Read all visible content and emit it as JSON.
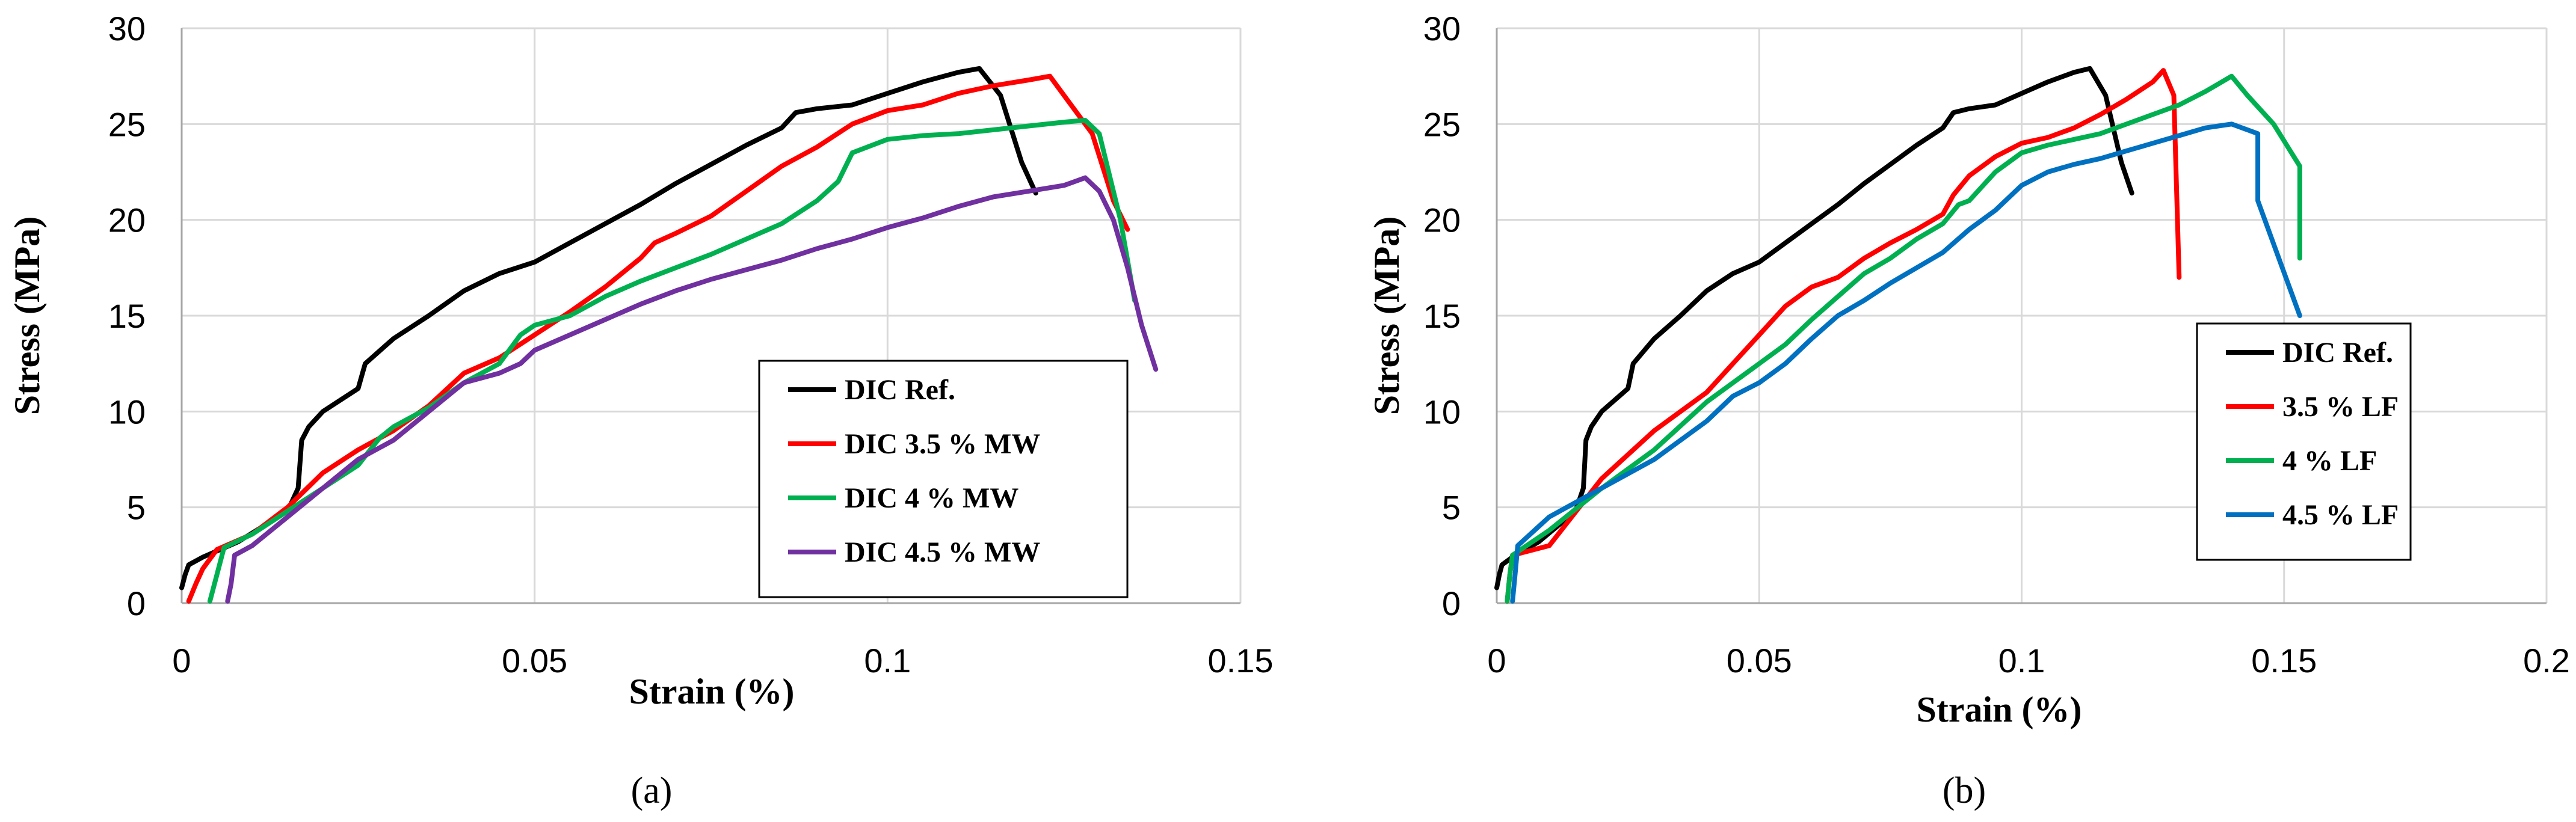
{
  "colors": {
    "black": "#000000",
    "red": "#ff0000",
    "green": "#00b050",
    "purple": "#7030a0",
    "blue": "#0070c0"
  },
  "chart_data": [
    {
      "type": "line",
      "caption": "(a)",
      "xlabel": "Strain (%)",
      "ylabel": "Stress (MPa)",
      "xlim": [
        0,
        0.15
      ],
      "ylim": [
        0,
        30
      ],
      "xticks": [
        0,
        0.05,
        0.1,
        0.15
      ],
      "xtick_labels": [
        "0",
        "0.05",
        "0.1",
        "0.15"
      ],
      "yticks": [
        0,
        5,
        10,
        15,
        20,
        25,
        30
      ],
      "ytick_labels": [
        "0",
        "5",
        "10",
        "15",
        "20",
        "25",
        "30"
      ],
      "grid": true,
      "legend_position": "bottom-right",
      "series": [
        {
          "name": "DIC Ref.",
          "color": "#000000",
          "x": [
            0,
            0.0005,
            0.001,
            0.003,
            0.008,
            0.015,
            0.0165,
            0.017,
            0.018,
            0.02,
            0.025,
            0.026,
            0.03,
            0.035,
            0.04,
            0.045,
            0.05,
            0.055,
            0.06,
            0.065,
            0.07,
            0.075,
            0.08,
            0.085,
            0.087,
            0.09,
            0.095,
            0.1,
            0.105,
            0.11,
            0.113,
            0.116,
            0.119,
            0.121
          ],
          "y": [
            0.8,
            1.5,
            2.0,
            2.4,
            3.2,
            4.8,
            6.0,
            8.5,
            9.2,
            10.0,
            11.2,
            12.5,
            13.8,
            15.0,
            16.3,
            17.2,
            17.8,
            18.8,
            19.8,
            20.8,
            21.9,
            22.9,
            23.9,
            24.8,
            25.6,
            25.8,
            26.0,
            26.6,
            27.2,
            27.7,
            27.9,
            26.5,
            23.0,
            21.4
          ]
        },
        {
          "name": "DIC 3.5 % MW",
          "color": "#ff0000",
          "x": [
            0.001,
            0.002,
            0.003,
            0.005,
            0.01,
            0.015,
            0.02,
            0.025,
            0.03,
            0.035,
            0.04,
            0.045,
            0.05,
            0.055,
            0.06,
            0.065,
            0.067,
            0.07,
            0.075,
            0.08,
            0.085,
            0.09,
            0.095,
            0.1,
            0.105,
            0.11,
            0.115,
            0.12,
            0.123,
            0.126,
            0.129,
            0.132,
            0.134
          ],
          "y": [
            0.1,
            1.0,
            1.8,
            2.8,
            3.6,
            5.0,
            6.8,
            8.0,
            9.0,
            10.3,
            12.0,
            12.8,
            14.0,
            15.2,
            16.5,
            18.0,
            18.8,
            19.3,
            20.2,
            21.5,
            22.8,
            23.8,
            25.0,
            25.7,
            26.0,
            26.6,
            27.0,
            27.3,
            27.5,
            26.0,
            24.5,
            21.0,
            19.5
          ]
        },
        {
          "name": "DIC 4 % MW",
          "color": "#00b050",
          "x": [
            0.004,
            0.005,
            0.006,
            0.01,
            0.015,
            0.02,
            0.025,
            0.028,
            0.03,
            0.035,
            0.04,
            0.045,
            0.048,
            0.05,
            0.055,
            0.06,
            0.065,
            0.07,
            0.075,
            0.08,
            0.085,
            0.09,
            0.093,
            0.095,
            0.1,
            0.105,
            0.11,
            0.115,
            0.12,
            0.125,
            0.128,
            0.13,
            0.133,
            0.135
          ],
          "y": [
            0.1,
            1.5,
            2.9,
            3.6,
            4.8,
            6.0,
            7.2,
            8.6,
            9.2,
            10.2,
            11.5,
            12.5,
            14.0,
            14.5,
            15.0,
            16.0,
            16.8,
            17.5,
            18.2,
            19.0,
            19.8,
            21.0,
            22.0,
            23.5,
            24.2,
            24.4,
            24.5,
            24.7,
            24.9,
            25.1,
            25.2,
            24.5,
            20.0,
            15.8
          ]
        },
        {
          "name": "DIC 4.5 % MW",
          "color": "#7030a0",
          "x": [
            0.0065,
            0.007,
            0.0075,
            0.01,
            0.015,
            0.02,
            0.025,
            0.03,
            0.035,
            0.04,
            0.045,
            0.048,
            0.05,
            0.055,
            0.06,
            0.065,
            0.07,
            0.075,
            0.08,
            0.085,
            0.09,
            0.095,
            0.1,
            0.105,
            0.11,
            0.115,
            0.12,
            0.125,
            0.128,
            0.13,
            0.132,
            0.134,
            0.136,
            0.138
          ],
          "y": [
            0.1,
            1.0,
            2.5,
            3.0,
            4.5,
            6.0,
            7.5,
            8.5,
            10.0,
            11.5,
            12.0,
            12.5,
            13.2,
            14.0,
            14.8,
            15.6,
            16.3,
            16.9,
            17.4,
            17.9,
            18.5,
            19.0,
            19.6,
            20.1,
            20.7,
            21.2,
            21.5,
            21.8,
            22.2,
            21.5,
            20.0,
            17.5,
            14.5,
            12.2
          ]
        }
      ]
    },
    {
      "type": "line",
      "caption": "(b)",
      "xlabel": "Strain (%)",
      "ylabel": "Stress (MPa)",
      "xlim": [
        0,
        0.2
      ],
      "ylim": [
        0,
        30
      ],
      "xticks": [
        0,
        0.05,
        0.1,
        0.15,
        0.2
      ],
      "xtick_labels": [
        "0",
        "0.05",
        "0.1",
        "0.15",
        "0.2"
      ],
      "yticks": [
        0,
        5,
        10,
        15,
        20,
        25,
        30
      ],
      "ytick_labels": [
        "0",
        "5",
        "10",
        "15",
        "20",
        "25",
        "30"
      ],
      "grid": true,
      "legend_position": "bottom-right",
      "series": [
        {
          "name": "DIC Ref.",
          "color": "#000000",
          "x": [
            0,
            0.0005,
            0.001,
            0.003,
            0.008,
            0.015,
            0.0165,
            0.017,
            0.018,
            0.02,
            0.025,
            0.026,
            0.03,
            0.035,
            0.04,
            0.045,
            0.05,
            0.055,
            0.06,
            0.065,
            0.07,
            0.075,
            0.08,
            0.085,
            0.087,
            0.09,
            0.095,
            0.1,
            0.105,
            0.11,
            0.113,
            0.116,
            0.119,
            0.121
          ],
          "y": [
            0.8,
            1.5,
            2.0,
            2.4,
            3.2,
            4.8,
            6.0,
            8.5,
            9.2,
            10.0,
            11.2,
            12.5,
            13.8,
            15.0,
            16.3,
            17.2,
            17.8,
            18.8,
            19.8,
            20.8,
            21.9,
            22.9,
            23.9,
            24.8,
            25.6,
            25.8,
            26.0,
            26.6,
            27.2,
            27.7,
            27.9,
            26.5,
            23.0,
            21.4
          ]
        },
        {
          "name": "3.5 % LF",
          "color": "#ff0000",
          "x": [
            0.002,
            0.0025,
            0.003,
            0.01,
            0.02,
            0.03,
            0.04,
            0.045,
            0.05,
            0.055,
            0.06,
            0.065,
            0.07,
            0.075,
            0.08,
            0.085,
            0.087,
            0.09,
            0.095,
            0.1,
            0.105,
            0.11,
            0.115,
            0.12,
            0.125,
            0.127,
            0.129,
            0.13
          ],
          "y": [
            0.1,
            1.5,
            2.5,
            3.0,
            6.5,
            9.0,
            11.0,
            12.5,
            14.0,
            15.5,
            16.5,
            17.0,
            18.0,
            18.8,
            19.5,
            20.3,
            21.3,
            22.3,
            23.3,
            24.0,
            24.3,
            24.8,
            25.5,
            26.3,
            27.2,
            27.8,
            26.5,
            17.0
          ]
        },
        {
          "name": "4 % LF",
          "color": "#00b050",
          "x": [
            0.002,
            0.0025,
            0.003,
            0.01,
            0.02,
            0.03,
            0.04,
            0.05,
            0.055,
            0.06,
            0.065,
            0.07,
            0.075,
            0.08,
            0.085,
            0.088,
            0.09,
            0.095,
            0.1,
            0.105,
            0.11,
            0.115,
            0.12,
            0.125,
            0.13,
            0.135,
            0.14,
            0.143,
            0.148,
            0.153,
            0.153
          ],
          "y": [
            0.1,
            1.5,
            2.5,
            3.8,
            6.0,
            8.0,
            10.5,
            12.5,
            13.5,
            14.8,
            16.0,
            17.2,
            18.0,
            19.0,
            19.8,
            20.8,
            21.0,
            22.5,
            23.5,
            23.9,
            24.2,
            24.5,
            25.0,
            25.5,
            26.0,
            26.7,
            27.5,
            26.5,
            25.0,
            22.8,
            18.0
          ]
        },
        {
          "name": "4.5 % LF",
          "color": "#0070c0",
          "x": [
            0.003,
            0.0035,
            0.004,
            0.01,
            0.02,
            0.03,
            0.04,
            0.045,
            0.05,
            0.055,
            0.06,
            0.065,
            0.07,
            0.075,
            0.08,
            0.085,
            0.09,
            0.095,
            0.1,
            0.105,
            0.11,
            0.115,
            0.12,
            0.125,
            0.13,
            0.135,
            0.14,
            0.145,
            0.145,
            0.153
          ],
          "y": [
            0.1,
            1.5,
            3.0,
            4.5,
            6.0,
            7.5,
            9.5,
            10.8,
            11.5,
            12.5,
            13.8,
            15.0,
            15.8,
            16.7,
            17.5,
            18.3,
            19.5,
            20.5,
            21.8,
            22.5,
            22.9,
            23.2,
            23.6,
            24.0,
            24.4,
            24.8,
            25.0,
            24.5,
            21.0,
            15.0
          ]
        }
      ]
    }
  ]
}
